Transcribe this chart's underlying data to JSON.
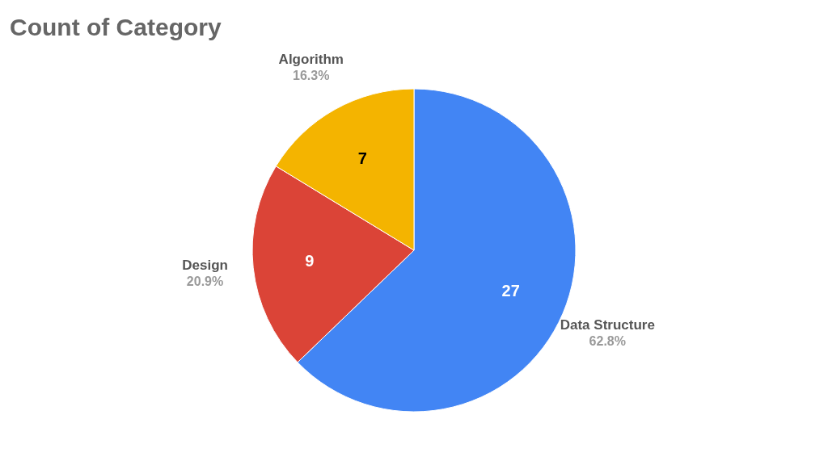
{
  "chart_data": {
    "type": "pie",
    "title": "Count of Category",
    "categories": [
      "Data Structure",
      "Design",
      "Algorithm"
    ],
    "values": [
      27,
      9,
      7
    ],
    "colors": [
      "#4285f4",
      "#db4437",
      "#f4b400"
    ],
    "value_labels": [
      "27",
      "9",
      "7"
    ],
    "annotations": [
      "62.8%",
      "20.9%",
      "16.3%"
    ]
  }
}
